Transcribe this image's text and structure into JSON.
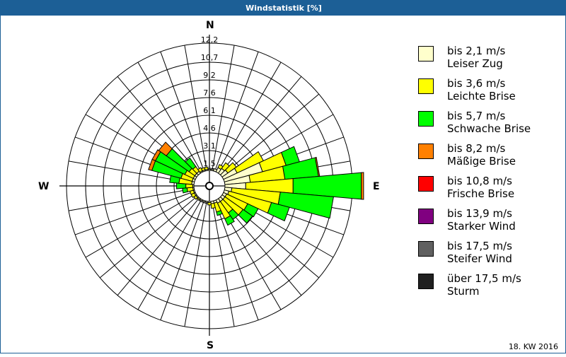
{
  "window": {
    "title": "Windstatistik [%]"
  },
  "footer": {
    "period": "18. KW 2016"
  },
  "cardinals": {
    "n": "N",
    "e": "E",
    "s": "S",
    "w": "W"
  },
  "legend": [
    {
      "range": "bis 2,1 m/s",
      "name": "Leiser Zug",
      "color": "#ffffcc"
    },
    {
      "range": "bis 3,6 m/s",
      "name": "Leichte Brise",
      "color": "#ffff00"
    },
    {
      "range": "bis 5,7 m/s",
      "name": "Schwache Brise",
      "color": "#00ff00"
    },
    {
      "range": "bis 8,2 m/s",
      "name": "Mäßige Brise",
      "color": "#ff8000"
    },
    {
      "range": "bis 10,8 m/s",
      "name": "Frische Brise",
      "color": "#ff0000"
    },
    {
      "range": "bis 13,9 m/s",
      "name": "Starker Wind",
      "color": "#800080"
    },
    {
      "range": "bis 17,5 m/s",
      "name": "Steifer Wind",
      "color": "#606060"
    },
    {
      "range": "über 17,5 m/s",
      "name": "Sturm",
      "color": "#202020"
    }
  ],
  "chart_data": {
    "type": "wind-rose",
    "title": "Windstatistik [%]",
    "subtitle": "18. KW 2016",
    "radial_unit": "%",
    "ring_labels": [
      "1,5",
      "3,1",
      "4,6",
      "6,1",
      "7,6",
      "9,2",
      "10,7",
      "12,2"
    ],
    "ring_values": [
      1.5,
      3.1,
      4.6,
      6.1,
      7.6,
      9.2,
      10.7,
      12.2
    ],
    "rmax": 12.2,
    "sector_width_deg": 10,
    "series_names": [
      "bis 2,1 m/s",
      "bis 3,6 m/s",
      "bis 5,7 m/s",
      "bis 8,2 m/s",
      "bis 10,8 m/s",
      "bis 13,9 m/s",
      "bis 17,5 m/s",
      "über 17,5 m/s"
    ],
    "sectors": [
      {
        "dir": 0,
        "values": [
          0.1,
          0.0,
          0.0,
          0,
          0,
          0,
          0,
          0
        ]
      },
      {
        "dir": 10,
        "values": [
          0.1,
          0.0,
          0.0,
          0,
          0,
          0,
          0,
          0
        ]
      },
      {
        "dir": 20,
        "values": [
          0.2,
          0.0,
          0.0,
          0,
          0,
          0,
          0,
          0
        ]
      },
      {
        "dir": 30,
        "values": [
          0.4,
          0.3,
          0.0,
          0,
          0,
          0,
          0,
          0
        ]
      },
      {
        "dir": 40,
        "values": [
          0.5,
          0.6,
          0.0,
          0,
          0,
          0,
          0,
          0
        ]
      },
      {
        "dir": 50,
        "values": [
          0.6,
          0.9,
          0.0,
          0,
          0,
          0,
          0,
          0
        ]
      },
      {
        "dir": 60,
        "values": [
          1.3,
          2.5,
          0.0,
          0,
          0,
          0,
          0,
          0
        ]
      },
      {
        "dir": 70,
        "values": [
          3.4,
          2.1,
          1.2,
          0,
          0,
          0,
          0,
          0
        ]
      },
      {
        "dir": 80,
        "values": [
          2.2,
          3.0,
          2.9,
          0.1,
          0,
          0,
          0,
          0
        ]
      },
      {
        "dir": 90,
        "values": [
          1.8,
          4.1,
          5.9,
          0.2,
          0,
          0,
          0,
          0
        ]
      },
      {
        "dir": 100,
        "values": [
          0.6,
          4.2,
          4.6,
          0,
          0,
          0,
          0,
          0
        ]
      },
      {
        "dir": 110,
        "values": [
          0.4,
          3.8,
          1.6,
          0,
          0,
          0,
          0,
          0
        ]
      },
      {
        "dir": 120,
        "values": [
          0.3,
          2.0,
          1.0,
          0,
          0,
          0,
          0,
          0
        ]
      },
      {
        "dir": 130,
        "values": [
          0.3,
          1.9,
          1.0,
          0,
          0,
          0,
          0,
          0
        ]
      },
      {
        "dir": 140,
        "values": [
          0.3,
          1.2,
          0.7,
          0,
          0,
          0,
          0,
          0
        ]
      },
      {
        "dir": 150,
        "values": [
          0.3,
          1.5,
          0.6,
          0,
          0,
          0,
          0,
          0
        ]
      },
      {
        "dir": 160,
        "values": [
          0.2,
          0.8,
          0.3,
          0,
          0,
          0,
          0,
          0
        ]
      },
      {
        "dir": 170,
        "values": [
          0.2,
          0.4,
          0.0,
          0,
          0,
          0,
          0,
          0
        ]
      },
      {
        "dir": 180,
        "values": [
          0.1,
          0.2,
          0.0,
          0,
          0,
          0,
          0,
          0
        ]
      },
      {
        "dir": 190,
        "values": [
          0.1,
          0.0,
          0.0,
          0,
          0,
          0,
          0,
          0
        ]
      },
      {
        "dir": 200,
        "values": [
          0.1,
          0.0,
          0.0,
          0,
          0,
          0,
          0,
          0
        ]
      },
      {
        "dir": 210,
        "values": [
          0.1,
          0.0,
          0.0,
          0,
          0,
          0,
          0,
          0
        ]
      },
      {
        "dir": 220,
        "values": [
          0.1,
          0.1,
          0.0,
          0,
          0,
          0,
          0,
          0
        ]
      },
      {
        "dir": 230,
        "values": [
          0.1,
          0.2,
          0.0,
          0,
          0,
          0,
          0,
          0
        ]
      },
      {
        "dir": 240,
        "values": [
          0.1,
          0.3,
          0.0,
          0,
          0,
          0,
          0,
          0
        ]
      },
      {
        "dir": 250,
        "values": [
          0.1,
          0.3,
          0.0,
          0,
          0,
          0,
          0,
          0
        ]
      },
      {
        "dir": 260,
        "values": [
          0.1,
          0.5,
          0.4,
          0,
          0,
          0,
          0,
          0
        ]
      },
      {
        "dir": 270,
        "values": [
          0.1,
          0.6,
          0.8,
          0,
          0,
          0,
          0,
          0
        ]
      },
      {
        "dir": 280,
        "values": [
          0.2,
          1.1,
          0.8,
          0,
          0,
          0,
          0,
          0
        ]
      },
      {
        "dir": 290,
        "values": [
          0.2,
          1.0,
          2.6,
          0.3,
          0,
          0,
          0,
          0
        ]
      },
      {
        "dir": 300,
        "values": [
          0.2,
          0.8,
          2.8,
          0.3,
          0,
          0,
          0,
          0
        ]
      },
      {
        "dir": 310,
        "values": [
          0.2,
          0.6,
          2.4,
          0.8,
          0,
          0,
          0,
          0
        ]
      },
      {
        "dir": 320,
        "values": [
          0.2,
          0.5,
          0.9,
          0,
          0,
          0,
          0,
          0
        ]
      },
      {
        "dir": 330,
        "values": [
          0.1,
          0.3,
          0.0,
          0,
          0,
          0,
          0,
          0
        ]
      },
      {
        "dir": 340,
        "values": [
          0.1,
          0.2,
          0.0,
          0,
          0,
          0,
          0,
          0
        ]
      },
      {
        "dir": 350,
        "values": [
          0.1,
          0.2,
          0.0,
          0,
          0,
          0,
          0,
          0
        ]
      }
    ],
    "legend_position": "right",
    "grid": true
  }
}
